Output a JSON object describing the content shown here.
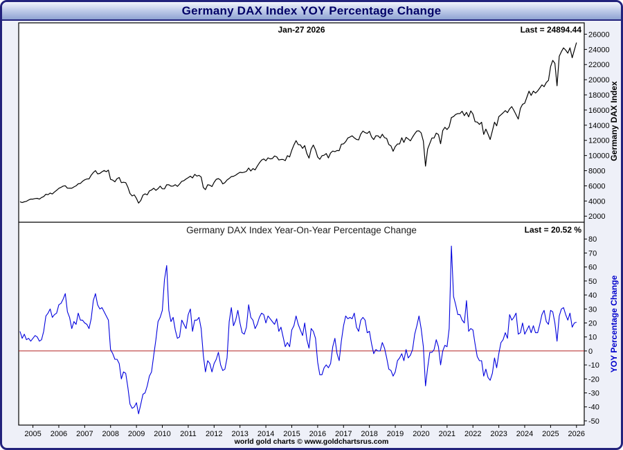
{
  "window": {
    "title": "Germany DAX Index YOY Percentage Change"
  },
  "top_panel": {
    "date_label": "Jan-27  2026",
    "last_label": "Last = 24894.44",
    "axis_title": "Germany DAX Index"
  },
  "bottom_panel": {
    "title": "Germany DAX Index Year-On-Year Percentage Change",
    "last_label": "Last = 20.52 %",
    "axis_title": "YOY Percentage Change"
  },
  "footer": {
    "credit": "world gold charts © www.goldchartsrus.com"
  },
  "colors": {
    "dax_line": "#000000",
    "yoy_line": "#0000dd",
    "zero_line": "#b22222",
    "frame": "#000000",
    "window_border": "#22227c"
  },
  "chart_data": [
    {
      "type": "line",
      "panel": "top",
      "name": "Germany DAX Index",
      "color": "#000000",
      "x_range": [
        2004.45,
        2026.3
      ],
      "ylim": [
        1200,
        27500
      ],
      "yticks": [
        2000,
        4000,
        6000,
        8000,
        10000,
        12000,
        14000,
        16000,
        18000,
        20000,
        22000,
        24000,
        26000
      ],
      "xticks": [
        2005,
        2006,
        2007,
        2008,
        2009,
        2010,
        2011,
        2012,
        2013,
        2014,
        2015,
        2016,
        2017,
        2018,
        2019,
        2020,
        2021,
        2022,
        2023,
        2024,
        2025,
        2026
      ],
      "last": 24894.44,
      "last_date": "Jan-27 2026",
      "start_year": 2004,
      "start_month": 7,
      "step_months": 1,
      "values": [
        3900,
        3790,
        3890,
        3960,
        4130,
        4250,
        4250,
        4320,
        4350,
        4250,
        4460,
        4590,
        4890,
        4830,
        5040,
        4930,
        5190,
        5410,
        5670,
        5800,
        5970,
        6010,
        5690,
        5680,
        5680,
        5860,
        6000,
        6270,
        6310,
        6600,
        6790,
        6910,
        6920,
        7400,
        7760,
        8010,
        7580,
        7640,
        7860,
        8020,
        7870,
        8070,
        6850,
        6750,
        6530,
        6950,
        7100,
        6420,
        6480,
        6420,
        5830,
        4990,
        4670,
        4810,
        4340,
        3720,
        4080,
        4770,
        4940,
        4810,
        5330,
        5460,
        5680,
        5410,
        5630,
        5960,
        5610,
        5600,
        6150,
        6140,
        5960,
        5970,
        6150,
        5930,
        6230,
        6600,
        6690,
        6910,
        7080,
        7270,
        7040,
        7510,
        7290,
        7380,
        7160,
        5780,
        5500,
        6140,
        6090,
        5900,
        6460,
        6860,
        6950,
        6760,
        6260,
        6420,
        6770,
        6970,
        7220,
        7260,
        7410,
        7610,
        7780,
        7740,
        7800,
        7910,
        8350,
        7960,
        8280,
        8100,
        8590,
        9030,
        9400,
        9550,
        9310,
        9690,
        9560,
        9600,
        9940,
        9830,
        9410,
        9470,
        9470,
        9330,
        9980,
        9810,
        10700,
        11400,
        11970,
        11440,
        11410,
        10940,
        11310,
        10260,
        9660,
        10850,
        11380,
        10740,
        9800,
        9500,
        9970,
        10040,
        10260,
        9680,
        10340,
        10590,
        10510,
        10660,
        10640,
        11480,
        11540,
        11830,
        12310,
        12440,
        12600,
        12330,
        12120,
        12060,
        12830,
        13230,
        13020,
        12920,
        13190,
        12440,
        12100,
        12610,
        12600,
        12310,
        12810,
        12360,
        12250,
        11450,
        11260,
        10560,
        11170,
        11520,
        11530,
        12340,
        11730,
        12400,
        12190,
        11940,
        12430,
        12870,
        13240,
        13250,
        12980,
        11890,
        8600,
        10860,
        11590,
        12310,
        12310,
        12950,
        12760,
        11560,
        13290,
        13720,
        13430,
        13790,
        15010,
        15140,
        15420,
        15530,
        15540,
        15840,
        15260,
        15690,
        15100,
        15880,
        15470,
        14460,
        14410,
        14100,
        14390,
        12780,
        13480,
        12830,
        12110,
        13250,
        14400,
        13920,
        15130,
        15370,
        15630,
        15920,
        15660,
        16150,
        16450,
        15950,
        15390,
        14810,
        16220,
        16750,
        16900,
        17680,
        18490,
        17930,
        18500,
        18240,
        18510,
        18910,
        19320,
        19080,
        19630,
        19910,
        21730,
        22550,
        22160,
        19200,
        23100,
        23700,
        24200,
        23900,
        23500,
        24200,
        22900,
        23900,
        24894.44
      ]
    },
    {
      "type": "line",
      "panel": "bottom",
      "name": "YOY Percentage Change",
      "color": "#0000dd",
      "zero_line": 0,
      "zero_line_color": "#b22222",
      "x_range": [
        2004.45,
        2026.3
      ],
      "ylim": [
        -53,
        92
      ],
      "yticks": [
        -50,
        -40,
        -30,
        -20,
        -10,
        0,
        10,
        20,
        30,
        40,
        50,
        60,
        70,
        80
      ],
      "last": 20.52,
      "start_year": 2004,
      "start_month": 7,
      "step_months": 1,
      "values": [
        14,
        9,
        12,
        8,
        9,
        7,
        9,
        11,
        10,
        7,
        8,
        14,
        25,
        27,
        30,
        24,
        26,
        27,
        33,
        34,
        37,
        41,
        28,
        24,
        16,
        21,
        19,
        27,
        22,
        22,
        20,
        19,
        16,
        23,
        36,
        41,
        33,
        30,
        31,
        28,
        25,
        22,
        1,
        -2,
        -6,
        -6,
        -9,
        -20,
        -15,
        -16,
        -26,
        -38,
        -41,
        -40,
        -37,
        -45,
        -38,
        -31,
        -30,
        -25,
        -18,
        -15,
        -3,
        8,
        21,
        24,
        29,
        51,
        61,
        29,
        21,
        24,
        15,
        9,
        10,
        22,
        19,
        16,
        26,
        30,
        14,
        22,
        22,
        24,
        16,
        -3,
        -15,
        -7,
        -9,
        -15,
        -9,
        -6,
        -1,
        -10,
        -14,
        -13,
        -5,
        21,
        31,
        18,
        22,
        29,
        20,
        13,
        12,
        17,
        33,
        24,
        22,
        16,
        19,
        24,
        27,
        26,
        20,
        25,
        23,
        21,
        19,
        23,
        14,
        17,
        10,
        3,
        6,
        3,
        15,
        18,
        25,
        19,
        15,
        11,
        20,
        8,
        2,
        16,
        14,
        9,
        -8,
        -17,
        -17,
        -12,
        -10,
        -12,
        -9,
        3,
        9,
        -2,
        -7,
        7,
        18,
        25,
        23,
        24,
        23,
        27,
        17,
        14,
        22,
        24,
        22,
        13,
        14,
        5,
        -2,
        1,
        0,
        0,
        6,
        2,
        -5,
        -13,
        -14,
        -18,
        -15,
        -7,
        -5,
        -2,
        -7,
        1,
        -5,
        -3,
        1,
        12,
        18,
        25,
        16,
        3,
        -25,
        -12,
        -1,
        -1,
        1,
        8,
        3,
        -10,
        0,
        4,
        3,
        16,
        75,
        39,
        33,
        26,
        26,
        22,
        20,
        36,
        14,
        16,
        15,
        5,
        -4,
        -7,
        -7,
        -18,
        -13,
        -19,
        -21,
        -16,
        -5,
        -12,
        -2,
        6,
        8,
        13,
        9,
        26,
        22,
        24,
        27,
        12,
        13,
        20,
        12,
        15,
        18,
        13,
        18,
        13,
        13,
        19,
        26,
        29,
        21,
        19,
        29,
        28,
        20,
        7,
        25,
        30,
        31,
        26,
        22,
        27,
        17,
        20,
        20.52
      ]
    }
  ]
}
